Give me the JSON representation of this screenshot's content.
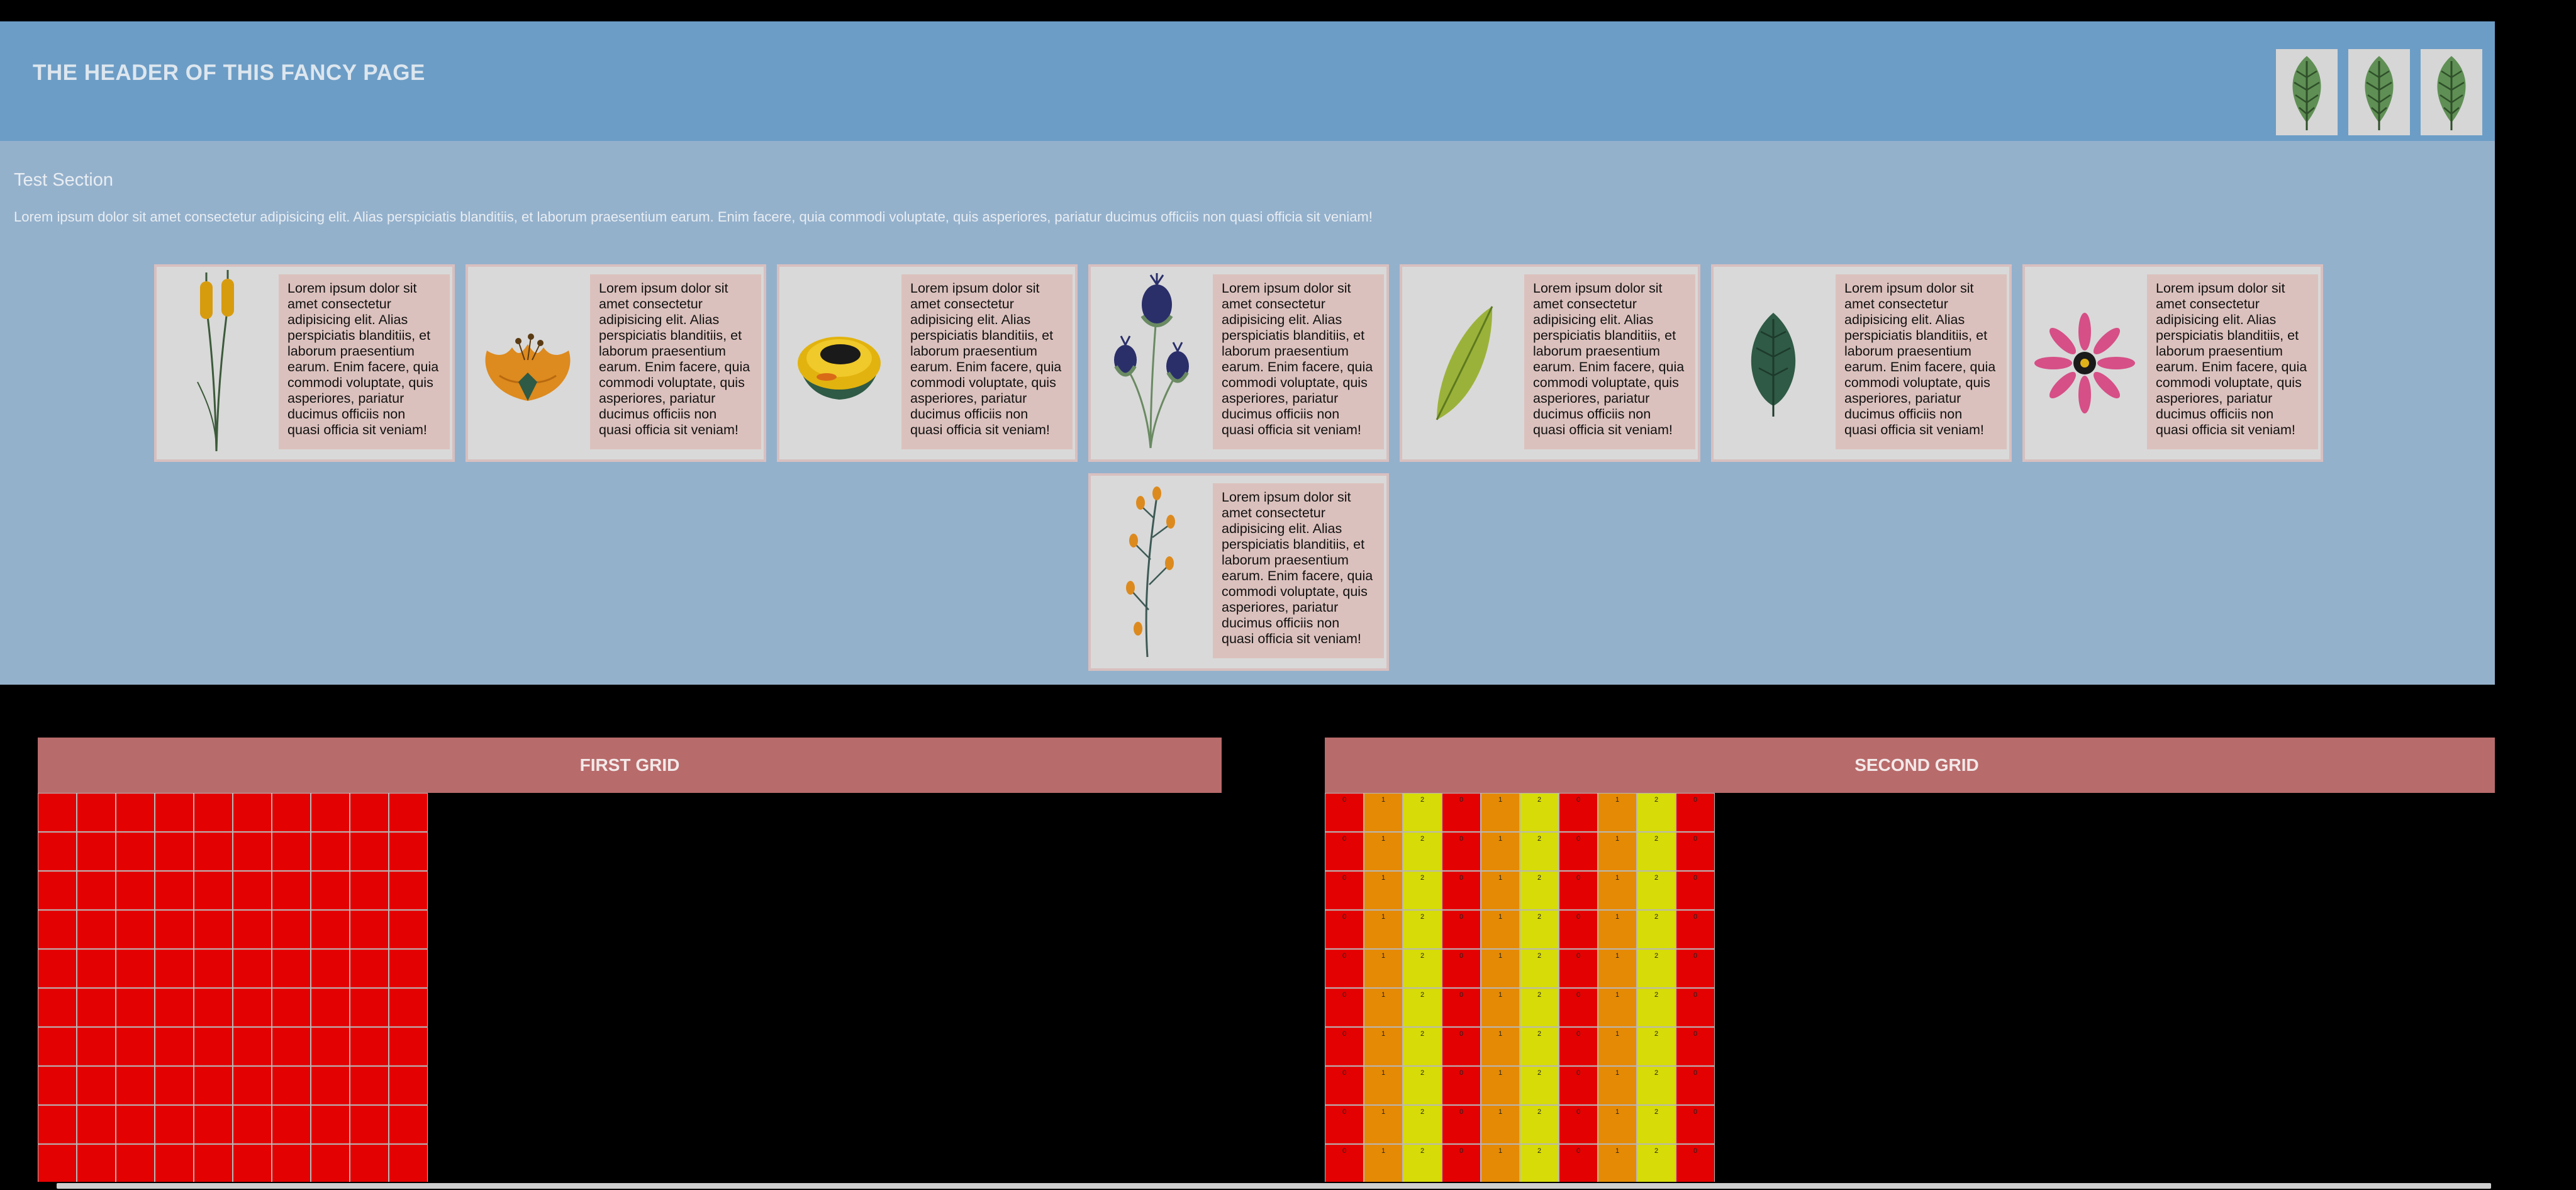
{
  "header": {
    "title": "THE HEADER OF THIS FANCY PAGE",
    "icons": [
      "leaf-icon",
      "leaf-icon",
      "leaf-icon"
    ]
  },
  "section": {
    "title": "Test Section",
    "text": "Lorem ipsum dolor sit amet consectetur adipisicing elit. Alias perspiciatis blanditiis, et laborum praesentium earum. Enim facere, quia commodi voluptate, quis asperiores, pariatur ducimus officiis non quasi officia sit veniam!",
    "cards": [
      {
        "icon": "cattail-flower-icon",
        "text": "Lorem ipsum dolor sit amet consectetur adipisicing elit. Alias perspiciatis blanditiis, et laborum praesentium earum. Enim facere, quia commodi voluptate, quis asperiores, pariatur ducimus officiis non quasi officia sit veniam!"
      },
      {
        "icon": "orange-flower-icon",
        "text": "Lorem ipsum dolor sit amet consectetur adipisicing elit. Alias perspiciatis blanditiis, et laborum praesentium earum. Enim facere, quia commodi voluptate, quis asperiores, pariatur ducimus officiis non quasi officia sit veniam!"
      },
      {
        "icon": "yellow-flower-icon",
        "text": "Lorem ipsum dolor sit amet consectetur adipisicing elit. Alias perspiciatis blanditiis, et laborum praesentium earum. Enim facere, quia commodi voluptate, quis asperiores, pariatur ducimus officiis non quasi officia sit veniam!"
      },
      {
        "icon": "thistle-flower-icon",
        "text": "Lorem ipsum dolor sit amet consectetur adipisicing elit. Alias perspiciatis blanditiis, et laborum praesentium earum. Enim facere, quia commodi voluptate, quis asperiores, pariatur ducimus officiis non quasi officia sit veniam!"
      },
      {
        "icon": "green-leaf-icon",
        "text": "Lorem ipsum dolor sit amet consectetur adipisicing elit. Alias perspiciatis blanditiis, et laborum praesentium earum. Enim facere, quia commodi voluptate, quis asperiores, pariatur ducimus officiis non quasi officia sit veniam!"
      },
      {
        "icon": "dark-leaf-icon",
        "text": "Lorem ipsum dolor sit amet consectetur adipisicing elit. Alias perspiciatis blanditiis, et laborum praesentium earum. Enim facere, quia commodi voluptate, quis asperiores, pariatur ducimus officiis non quasi officia sit veniam!"
      },
      {
        "icon": "pink-daisy-icon",
        "text": "Lorem ipsum dolor sit amet consectetur adipisicing elit. Alias perspiciatis blanditiis, et laborum praesentium earum. Enim facere, quia commodi voluptate, quis asperiores, pariatur ducimus officiis non quasi officia sit veniam!"
      },
      {
        "icon": "orange-sprig-icon",
        "text": "Lorem ipsum dolor sit amet consectetur adipisicing elit. Alias perspiciatis blanditiis, et laborum praesentium earum. Enim facere, quia commodi voluptate, quis asperiores, pariatur ducimus officiis non quasi officia sit veniam!"
      }
    ]
  },
  "grids": {
    "first": {
      "title": "FIRST GRID",
      "columns": 10,
      "rows": 10
    },
    "second": {
      "title": "SECOND GRID",
      "column_values": [
        "0",
        "1",
        "2",
        "0",
        "1",
        "2",
        "0",
        "1",
        "2",
        "0"
      ],
      "rows": 10
    }
  },
  "colors": {
    "header_bg": "#6c9dc6",
    "section_bg": "#94b1cc",
    "grid_header_bg": "#b86b6b",
    "cell_red": "#e40101",
    "cell_orange": "#e58a04",
    "cell_yellow": "#d7db07"
  }
}
